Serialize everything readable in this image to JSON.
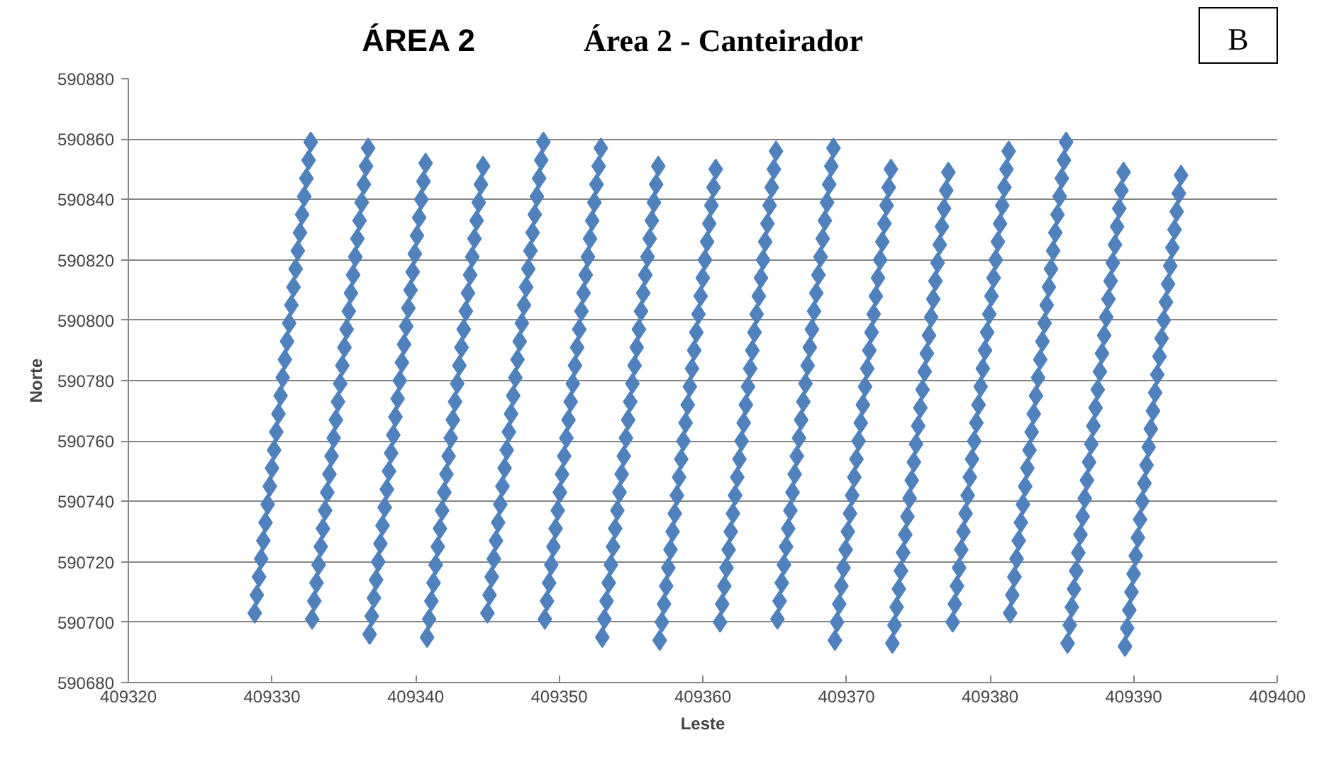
{
  "chart_data": {
    "type": "scatter",
    "title": "ÁREA 2",
    "subtitle": "Área 2 - Canteirador",
    "annotations": [
      "B"
    ],
    "xlabel": "Leste",
    "ylabel": "Norte",
    "xlim": [
      409320,
      409400
    ],
    "xticks": [
      409320,
      409330,
      409340,
      409350,
      409360,
      409370,
      409380,
      409390,
      409400
    ],
    "ylim": [
      590680,
      590880
    ],
    "yticks": [
      590680,
      590700,
      590720,
      590740,
      590760,
      590780,
      590800,
      590820,
      590840,
      590860,
      590880
    ],
    "grid": "y",
    "marker": "diamond",
    "series": [
      {
        "color": "#4f81bd",
        "x": [
          409328.8,
          409328.95,
          409329.1,
          409329.25,
          409329.4,
          409329.55,
          409329.7,
          409329.85,
          409330,
          409330.15,
          409330.3,
          409330.45,
          409330.6,
          409330.75,
          409330.9,
          409331.05,
          409331.2,
          409331.35,
          409331.5,
          409331.65,
          409331.8,
          409331.95,
          409332.1,
          409332.25,
          409332.4,
          409332.55,
          409332.7
        ],
        "values": [
          590703,
          590709,
          590715,
          590721,
          590727,
          590733,
          590739,
          590745,
          590751,
          590757,
          590763,
          590769,
          590775,
          590781,
          590787,
          590793,
          590799,
          590805,
          590811,
          590817,
          590823,
          590829,
          590835,
          590841,
          590847,
          590853,
          590859
        ]
      },
      {
        "color": "#4f81bd",
        "x": [
          409332.8,
          409332.95,
          409333.1,
          409333.25,
          409333.4,
          409333.55,
          409333.7,
          409333.85,
          409334,
          409334.15,
          409334.3,
          409334.45,
          409334.6,
          409334.75,
          409334.9,
          409335.05,
          409335.2,
          409335.35,
          409335.5,
          409335.65,
          409335.8,
          409335.95,
          409336.1,
          409336.25,
          409336.4,
          409336.55,
          409336.7
        ],
        "values": [
          590701,
          590707,
          590713,
          590719,
          590725,
          590731,
          590737,
          590743,
          590749,
          590755,
          590761,
          590767,
          590773,
          590779,
          590785,
          590791,
          590797,
          590803,
          590809,
          590815,
          590821,
          590827,
          590833,
          590839,
          590845,
          590851,
          590857
        ]
      },
      {
        "color": "#4f81bd",
        "x": [
          409336.8,
          409336.95,
          409337.1,
          409337.25,
          409337.4,
          409337.55,
          409337.7,
          409337.85,
          409338,
          409338.15,
          409338.3,
          409338.45,
          409338.6,
          409338.75,
          409338.9,
          409339.05,
          409339.2,
          409339.35,
          409339.5,
          409339.65,
          409339.8,
          409339.95,
          409340.1,
          409340.25,
          409340.4,
          409340.55,
          409340.7
        ],
        "values": [
          590696,
          590702,
          590708,
          590714,
          590720,
          590726,
          590732,
          590738,
          590744,
          590750,
          590756,
          590762,
          590768,
          590774,
          590780,
          590786,
          590792,
          590798,
          590804,
          590810,
          590816,
          590822,
          590828,
          590834,
          590840,
          590846,
          590852
        ]
      },
      {
        "color": "#4f81bd",
        "x": [
          409340.8,
          409340.95,
          409341.1,
          409341.25,
          409341.4,
          409341.55,
          409341.7,
          409341.85,
          409342,
          409342.15,
          409342.3,
          409342.45,
          409342.6,
          409342.75,
          409342.9,
          409343.05,
          409343.2,
          409343.35,
          409343.5,
          409343.65,
          409343.8,
          409343.95,
          409344.1,
          409344.25,
          409344.4,
          409344.55,
          409344.7
        ],
        "values": [
          590695,
          590701,
          590707,
          590713,
          590719,
          590725,
          590731,
          590737,
          590743,
          590749,
          590755,
          590761,
          590767,
          590773,
          590779,
          590785,
          590791,
          590797,
          590803,
          590809,
          590815,
          590821,
          590827,
          590833,
          590839,
          590845,
          590851
        ]
      },
      {
        "color": "#4f81bd",
        "x": [
          409345,
          409345.15,
          409345.3,
          409345.45,
          409345.6,
          409345.75,
          409345.9,
          409346.05,
          409346.2,
          409346.35,
          409346.5,
          409346.65,
          409346.8,
          409346.95,
          409347.1,
          409347.25,
          409347.4,
          409347.55,
          409347.7,
          409347.85,
          409348,
          409348.15,
          409348.3,
          409348.45,
          409348.6,
          409348.75,
          409348.9
        ],
        "values": [
          590703,
          590709,
          590715,
          590721,
          590727,
          590733,
          590739,
          590745,
          590751,
          590757,
          590763,
          590769,
          590775,
          590781,
          590787,
          590793,
          590799,
          590805,
          590811,
          590817,
          590823,
          590829,
          590835,
          590841,
          590847,
          590853,
          590859
        ]
      },
      {
        "color": "#4f81bd",
        "x": [
          409349,
          409349.15,
          409349.3,
          409349.45,
          409349.6,
          409349.75,
          409349.9,
          409350.05,
          409350.2,
          409350.35,
          409350.5,
          409350.65,
          409350.8,
          409350.95,
          409351.1,
          409351.25,
          409351.4,
          409351.55,
          409351.7,
          409351.85,
          409352,
          409352.15,
          409352.3,
          409352.45,
          409352.6,
          409352.75,
          409352.9
        ],
        "values": [
          590701,
          590707,
          590713,
          590719,
          590725,
          590731,
          590737,
          590743,
          590749,
          590755,
          590761,
          590767,
          590773,
          590779,
          590785,
          590791,
          590797,
          590803,
          590809,
          590815,
          590821,
          590827,
          590833,
          590839,
          590845,
          590851,
          590857
        ]
      },
      {
        "color": "#4f81bd",
        "x": [
          409353,
          409353.15,
          409353.3,
          409353.45,
          409353.6,
          409353.75,
          409353.9,
          409354.05,
          409354.2,
          409354.35,
          409354.5,
          409354.65,
          409354.8,
          409354.95,
          409355.1,
          409355.25,
          409355.4,
          409355.55,
          409355.7,
          409355.85,
          409356,
          409356.15,
          409356.3,
          409356.45,
          409356.6,
          409356.75,
          409356.9
        ],
        "values": [
          590695,
          590701,
          590707,
          590713,
          590719,
          590725,
          590731,
          590737,
          590743,
          590749,
          590755,
          590761,
          590767,
          590773,
          590779,
          590785,
          590791,
          590797,
          590803,
          590809,
          590815,
          590821,
          590827,
          590833,
          590839,
          590845,
          590851
        ]
      },
      {
        "color": "#4f81bd",
        "x": [
          409357,
          409357.15,
          409357.3,
          409357.45,
          409357.6,
          409357.75,
          409357.9,
          409358.05,
          409358.2,
          409358.35,
          409358.5,
          409358.65,
          409358.8,
          409358.95,
          409359.1,
          409359.25,
          409359.4,
          409359.55,
          409359.7,
          409359.85,
          409360,
          409360.15,
          409360.3,
          409360.45,
          409360.6,
          409360.75,
          409360.9
        ],
        "values": [
          590694,
          590700,
          590706,
          590712,
          590718,
          590724,
          590730,
          590736,
          590742,
          590748,
          590754,
          590760,
          590766,
          590772,
          590778,
          590784,
          590790,
          590796,
          590802,
          590808,
          590814,
          590820,
          590826,
          590832,
          590838,
          590844,
          590850
        ]
      },
      {
        "color": "#4f81bd",
        "x": [
          409361.2,
          409361.35,
          409361.5,
          409361.65,
          409361.8,
          409361.95,
          409362.1,
          409362.25,
          409362.4,
          409362.55,
          409362.7,
          409362.85,
          409363,
          409363.15,
          409363.3,
          409363.45,
          409363.6,
          409363.75,
          409363.9,
          409364.05,
          409364.2,
          409364.35,
          409364.5,
          409364.65,
          409364.8,
          409364.95,
          409365.1
        ],
        "values": [
          590700,
          590706,
          590712,
          590718,
          590724,
          590730,
          590736,
          590742,
          590748,
          590754,
          590760,
          590766,
          590772,
          590778,
          590784,
          590790,
          590796,
          590802,
          590808,
          590814,
          590820,
          590826,
          590832,
          590838,
          590844,
          590850,
          590856
        ]
      },
      {
        "color": "#4f81bd",
        "x": [
          409365.2,
          409365.35,
          409365.5,
          409365.65,
          409365.8,
          409365.95,
          409366.1,
          409366.25,
          409366.4,
          409366.55,
          409366.7,
          409366.85,
          409367,
          409367.15,
          409367.3,
          409367.45,
          409367.6,
          409367.75,
          409367.9,
          409368.05,
          409368.2,
          409368.35,
          409368.5,
          409368.65,
          409368.8,
          409368.95,
          409369.1
        ],
        "values": [
          590701,
          590707,
          590713,
          590719,
          590725,
          590731,
          590737,
          590743,
          590749,
          590755,
          590761,
          590767,
          590773,
          590779,
          590785,
          590791,
          590797,
          590803,
          590809,
          590815,
          590821,
          590827,
          590833,
          590839,
          590845,
          590851,
          590857
        ]
      },
      {
        "color": "#4f81bd",
        "x": [
          409369.2,
          409369.35,
          409369.5,
          409369.65,
          409369.8,
          409369.95,
          409370.1,
          409370.25,
          409370.4,
          409370.55,
          409370.7,
          409370.85,
          409371,
          409371.15,
          409371.3,
          409371.45,
          409371.6,
          409371.75,
          409371.9,
          409372.05,
          409372.2,
          409372.35,
          409372.5,
          409372.65,
          409372.8,
          409372.95,
          409373.1
        ],
        "values": [
          590694,
          590700,
          590706,
          590712,
          590718,
          590724,
          590730,
          590736,
          590742,
          590748,
          590754,
          590760,
          590766,
          590772,
          590778,
          590784,
          590790,
          590796,
          590802,
          590808,
          590814,
          590820,
          590826,
          590832,
          590838,
          590844,
          590850
        ]
      },
      {
        "color": "#4f81bd",
        "x": [
          409373.2,
          409373.35,
          409373.5,
          409373.65,
          409373.8,
          409373.95,
          409374.1,
          409374.25,
          409374.4,
          409374.55,
          409374.7,
          409374.85,
          409375,
          409375.15,
          409375.3,
          409375.45,
          409375.6,
          409375.75,
          409375.9,
          409376.05,
          409376.2,
          409376.35,
          409376.5,
          409376.65,
          409376.8,
          409376.95,
          409377.1
        ],
        "values": [
          590693,
          590699,
          590705,
          590711,
          590717,
          590723,
          590729,
          590735,
          590741,
          590747,
          590753,
          590759,
          590765,
          590771,
          590777,
          590783,
          590789,
          590795,
          590801,
          590807,
          590813,
          590819,
          590825,
          590831,
          590837,
          590843,
          590849
        ]
      },
      {
        "color": "#4f81bd",
        "x": [
          409377.4,
          409377.55,
          409377.7,
          409377.85,
          409378,
          409378.15,
          409378.3,
          409378.45,
          409378.6,
          409378.75,
          409378.9,
          409379.05,
          409379.2,
          409379.35,
          409379.5,
          409379.65,
          409379.8,
          409379.95,
          409380.1,
          409380.25,
          409380.4,
          409380.55,
          409380.7,
          409380.85,
          409381,
          409381.15,
          409381.3
        ],
        "values": [
          590700,
          590706,
          590712,
          590718,
          590724,
          590730,
          590736,
          590742,
          590748,
          590754,
          590760,
          590766,
          590772,
          590778,
          590784,
          590790,
          590796,
          590802,
          590808,
          590814,
          590820,
          590826,
          590832,
          590838,
          590844,
          590850,
          590856
        ]
      },
      {
        "color": "#4f81bd",
        "x": [
          409381.4,
          409381.55,
          409381.7,
          409381.85,
          409382,
          409382.15,
          409382.3,
          409382.45,
          409382.6,
          409382.75,
          409382.9,
          409383.05,
          409383.2,
          409383.35,
          409383.5,
          409383.65,
          409383.8,
          409383.95,
          409384.1,
          409384.25,
          409384.4,
          409384.55,
          409384.7,
          409384.85,
          409385,
          409385.15,
          409385.3
        ],
        "values": [
          590703,
          590709,
          590715,
          590721,
          590727,
          590733,
          590739,
          590745,
          590751,
          590757,
          590763,
          590769,
          590775,
          590781,
          590787,
          590793,
          590799,
          590805,
          590811,
          590817,
          590823,
          590829,
          590835,
          590841,
          590847,
          590853,
          590859
        ]
      },
      {
        "color": "#4f81bd",
        "x": [
          409385.4,
          409385.55,
          409385.7,
          409385.85,
          409386,
          409386.15,
          409386.3,
          409386.45,
          409386.6,
          409386.75,
          409386.9,
          409387.05,
          409387.2,
          409387.35,
          409387.5,
          409387.65,
          409387.8,
          409387.95,
          409388.1,
          409388.25,
          409388.4,
          409388.55,
          409388.7,
          409388.85,
          409389,
          409389.15,
          409389.3
        ],
        "values": [
          590693,
          590699,
          590705,
          590711,
          590717,
          590723,
          590729,
          590735,
          590741,
          590747,
          590753,
          590759,
          590765,
          590771,
          590777,
          590783,
          590789,
          590795,
          590801,
          590807,
          590813,
          590819,
          590825,
          590831,
          590837,
          590843,
          590849
        ]
      },
      {
        "color": "#4f81bd",
        "x": [
          409389.4,
          409389.55,
          409389.7,
          409389.85,
          409390,
          409390.15,
          409390.3,
          409390.45,
          409390.6,
          409390.75,
          409390.9,
          409391.05,
          409391.2,
          409391.35,
          409391.5,
          409391.65,
          409391.8,
          409391.95,
          409392.1,
          409392.25,
          409392.4,
          409392.55,
          409392.7,
          409392.85,
          409393,
          409393.15,
          409393.3
        ],
        "values": [
          590692,
          590698,
          590704,
          590710,
          590716,
          590722,
          590728,
          590734,
          590740,
          590746,
          590752,
          590758,
          590764,
          590770,
          590776,
          590782,
          590788,
          590794,
          590800,
          590806,
          590812,
          590818,
          590824,
          590830,
          590836,
          590842,
          590848
        ]
      }
    ]
  }
}
